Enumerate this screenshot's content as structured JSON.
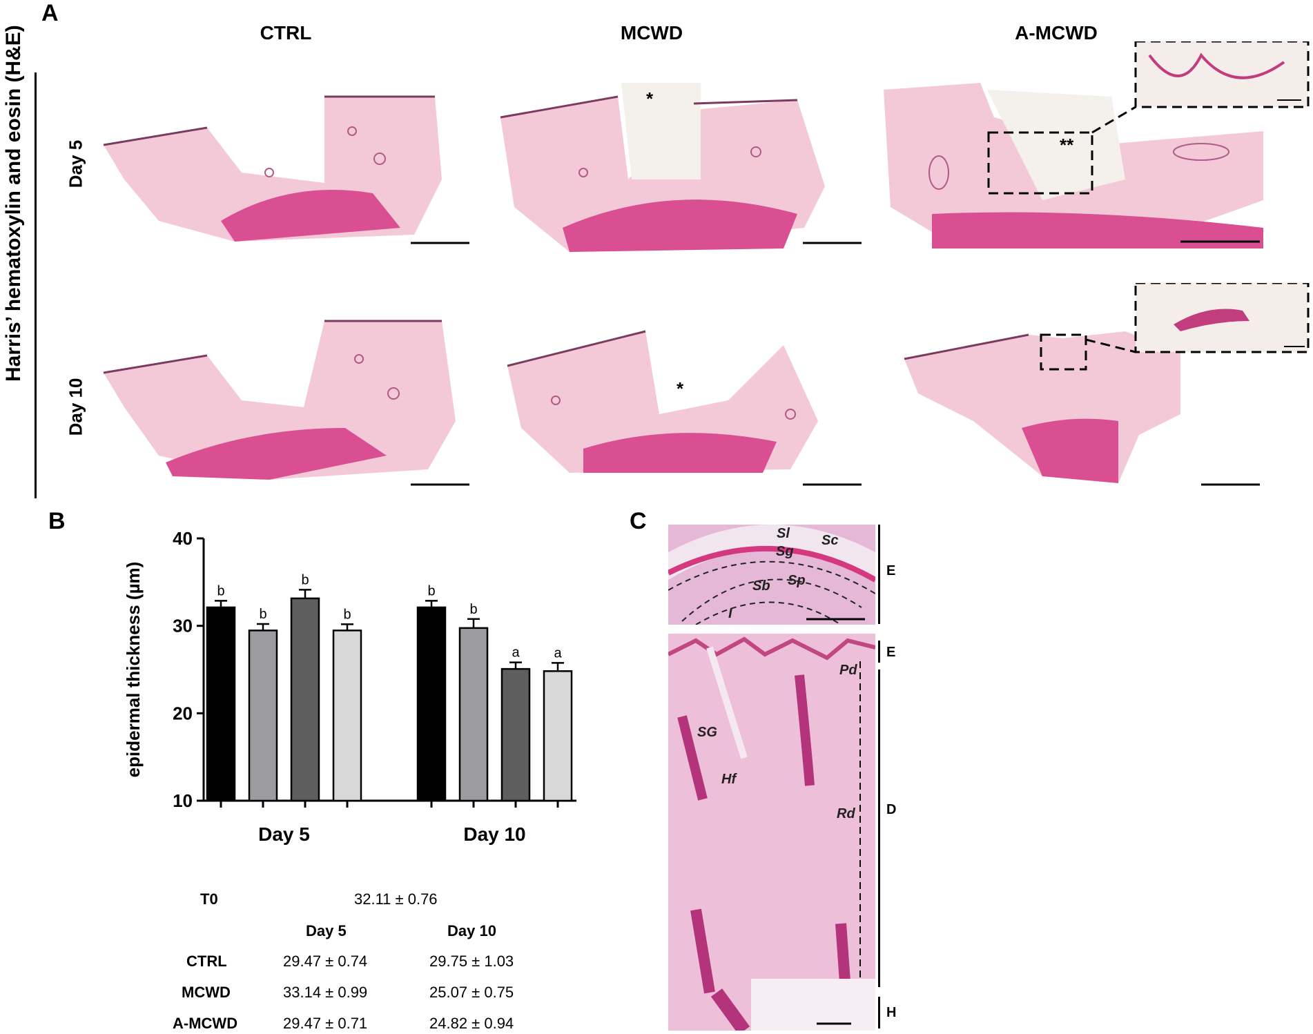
{
  "panels": {
    "a": "A",
    "b": "B",
    "c": "C"
  },
  "panel_a": {
    "side_label": "Harris’ hematoxylin and eosin (H&E)",
    "columns": [
      "CTRL",
      "MCWD",
      "A-MCWD"
    ],
    "rows": [
      "Day 5",
      "Day 10"
    ],
    "markers": {
      "mcwd_day5": "*",
      "amcwd_day5": "**",
      "mcwd_day10": "*"
    }
  },
  "chart_data": {
    "type": "bar",
    "ylabel": "epidermal thickness (µm)",
    "xlabel": "",
    "ylim": [
      10,
      40
    ],
    "yticks": [
      10,
      20,
      30,
      40
    ],
    "categories": [
      "Day 5",
      "Day 10"
    ],
    "series": [
      {
        "name": "T0",
        "values": [
          32.11,
          32.11
        ],
        "errors": [
          0.76,
          0.76
        ],
        "letters": [
          "b",
          "b"
        ],
        "color": "#000000"
      },
      {
        "name": "CTRL",
        "values": [
          29.47,
          29.75
        ],
        "errors": [
          0.74,
          1.03
        ],
        "letters": [
          "b",
          "b"
        ],
        "color": "#9c9ca0"
      },
      {
        "name": "MCWD",
        "values": [
          33.14,
          25.07
        ],
        "errors": [
          0.99,
          0.75
        ],
        "letters": [
          "b",
          "a"
        ],
        "color": "#5e5e5e"
      },
      {
        "name": "A-MCWD",
        "values": [
          29.47,
          24.82
        ],
        "errors": [
          0.71,
          0.94
        ],
        "letters": [
          "b",
          "a"
        ],
        "color": "#d8d8d8"
      }
    ],
    "legend": "bottom"
  },
  "table": {
    "t0_label": "T0",
    "t0_value": "32.11 ± 0.76",
    "headers": [
      "Day 5",
      "Day 10"
    ],
    "rows": [
      {
        "label": "CTRL",
        "day5": "29.47 ± 0.74",
        "day10": "29.75 ± 1.03"
      },
      {
        "label": "MCWD",
        "day5": "33.14 ± 0.99",
        "day10": "25.07 ± 0.75"
      },
      {
        "label": "A-MCWD",
        "day5": "29.47 ± 0.71",
        "day10": "24.82 ± 0.94"
      }
    ]
  },
  "panel_c": {
    "top_labels": [
      "Sl",
      "Sc",
      "Sg",
      "Sp",
      "Sb",
      "I"
    ],
    "bottom_labels": [
      "Pd",
      "SG",
      "Hf",
      "Rd"
    ],
    "bracket_labels": [
      "E",
      "E",
      "D",
      "H"
    ]
  }
}
